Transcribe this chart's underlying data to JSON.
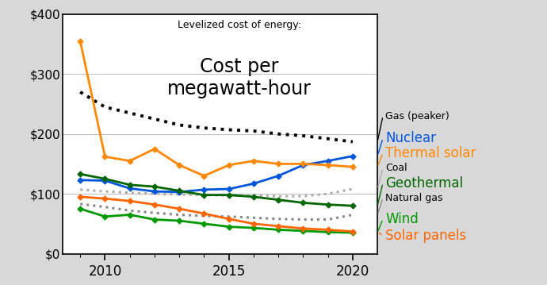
{
  "title_sub": "Levelized cost of energy:",
  "title_main": "Cost per\nmegawatt-hour",
  "bg_color": "#d8d8d8",
  "plot_bg_color": "#ffffff",
  "years": [
    2009,
    2010,
    2011,
    2012,
    2013,
    2014,
    2015,
    2016,
    2017,
    2018,
    2019,
    2020
  ],
  "gas_peaker": {
    "label": "Gas (peaker)",
    "color": "#000000",
    "linestyle": "dotted",
    "linewidth": 2.8,
    "values": [
      270,
      245,
      235,
      225,
      215,
      210,
      207,
      205,
      200,
      197,
      192,
      187
    ]
  },
  "coal_dotted": {
    "label": "Coal",
    "color": "#aaaaaa",
    "linestyle": "dotted",
    "linewidth": 2.2,
    "values": [
      107,
      104,
      102,
      100,
      99,
      98,
      97,
      97,
      96,
      96,
      100,
      108
    ]
  },
  "natural_gas_dotted": {
    "label": "Natural gas",
    "color": "#888888",
    "linestyle": "dotted",
    "linewidth": 2.2,
    "values": [
      83,
      78,
      72,
      68,
      65,
      63,
      62,
      60,
      58,
      57,
      57,
      65
    ]
  },
  "nuclear": {
    "label": "Nuclear",
    "color": "#0055dd",
    "linestyle": "solid",
    "linewidth": 2.0,
    "marker": "D",
    "markersize": 3.5,
    "values": [
      123,
      122,
      109,
      104,
      103,
      107,
      108,
      117,
      130,
      148,
      155,
      163
    ]
  },
  "thermal_solar": {
    "label": "Thermal solar",
    "color": "#ff8800",
    "linestyle": "solid",
    "linewidth": 2.0,
    "marker": "D",
    "markersize": 3.5,
    "values": [
      355,
      162,
      155,
      175,
      148,
      130,
      148,
      155,
      150,
      150,
      148,
      145
    ]
  },
  "geothermal": {
    "label": "Geothermal",
    "color": "#006600",
    "linestyle": "solid",
    "linewidth": 2.0,
    "marker": "D",
    "markersize": 3.5,
    "values": [
      133,
      125,
      115,
      112,
      105,
      98,
      98,
      95,
      90,
      85,
      82,
      80
    ]
  },
  "wind": {
    "label": "Wind",
    "color": "#009900",
    "linestyle": "solid",
    "linewidth": 2.0,
    "marker": "D",
    "markersize": 3.5,
    "values": [
      75,
      62,
      65,
      57,
      55,
      50,
      45,
      43,
      40,
      38,
      36,
      35
    ]
  },
  "solar_panels": {
    "label": "Solar panels",
    "color": "#ff6600",
    "linestyle": "solid",
    "linewidth": 2.0,
    "marker": "D",
    "markersize": 3.5,
    "values": [
      95,
      92,
      88,
      82,
      75,
      67,
      58,
      50,
      46,
      42,
      40,
      37
    ]
  },
  "ylim": [
    0,
    400
  ],
  "yticks": [
    0,
    100,
    200,
    300,
    400
  ],
  "ytick_labels": [
    "$0",
    "$100",
    "$200",
    "$300",
    "$400"
  ],
  "xlim": [
    2008.3,
    2021.0
  ],
  "xticks": [
    2010,
    2015,
    2020
  ]
}
